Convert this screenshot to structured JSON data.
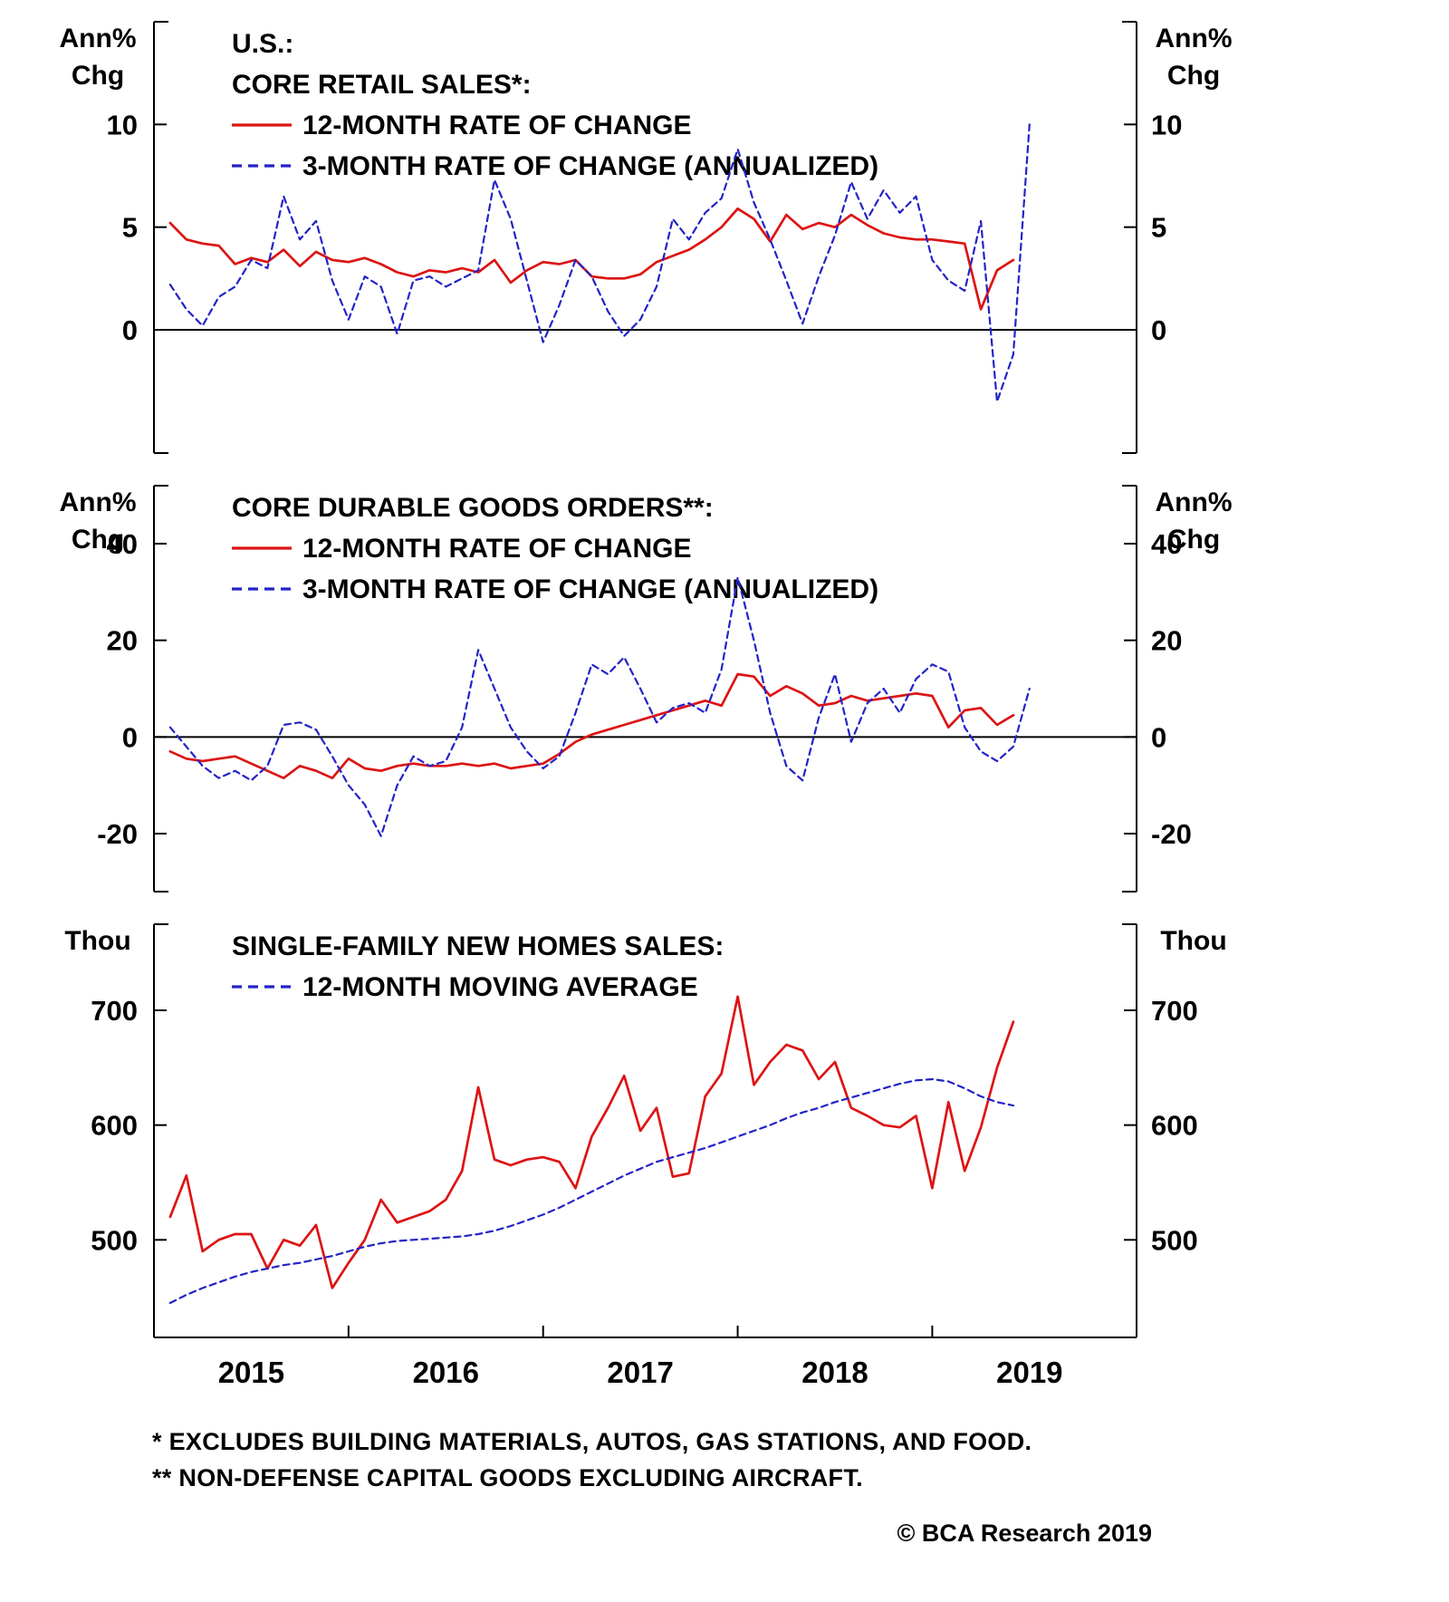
{
  "page": {
    "footnotes": [
      "*  EXCLUDES BUILDING MATERIALS, AUTOS, GAS STATIONS, AND FOOD.",
      "** NON-DEFENSE CAPITAL GOODS EXCLUDING AIRCRAFT."
    ],
    "copyright": "© BCA Research 2019"
  },
  "colors": {
    "red": "#dd1414",
    "blue": "#2323c8",
    "axis": "#000000"
  },
  "x_axis": {
    "xlim": [
      2014.5,
      2019.55
    ],
    "minor_ticks": [
      2015.5,
      2016.5,
      2017.5,
      2018.5
    ],
    "year_labels": [
      {
        "label": "2015",
        "x": 2015
      },
      {
        "label": "2016",
        "x": 2016
      },
      {
        "label": "2017",
        "x": 2017
      },
      {
        "label": "2018",
        "x": 2018
      },
      {
        "label": "2019",
        "x": 2019
      }
    ]
  },
  "chart_data": [
    {
      "type": "line",
      "unit_lines": [
        "Ann%",
        "Chg"
      ],
      "title_lines": [
        "U.S.:",
        "CORE RETAIL SALES*:"
      ],
      "legend": [
        {
          "label": "12-MONTH RATE OF CHANGE",
          "color": "red",
          "style": "solid"
        },
        {
          "label": "3-MONTH RATE OF CHANGE (ANNUALIZED)",
          "color": "blue",
          "style": "dashed"
        }
      ],
      "ylim": [
        -6,
        15
      ],
      "yticks": [
        0,
        5,
        10
      ],
      "zero_line": true,
      "show_x_axis": false,
      "series": [
        {
          "name": "12-month rate of change",
          "color": "red",
          "style": "solid",
          "start_year": 2014,
          "start_month": 8,
          "values": [
            5.2,
            4.4,
            4.2,
            4.1,
            3.2,
            3.5,
            3.3,
            3.9,
            3.1,
            3.8,
            3.4,
            3.3,
            3.5,
            3.2,
            2.8,
            2.6,
            2.9,
            2.8,
            3.0,
            2.8,
            3.4,
            2.3,
            2.9,
            3.3,
            3.2,
            3.4,
            2.6,
            2.5,
            2.5,
            2.7,
            3.3,
            3.6,
            3.9,
            4.4,
            5.0,
            5.9,
            5.4,
            4.3,
            5.6,
            4.9,
            5.2,
            5.0,
            5.6,
            5.1,
            4.7,
            4.5,
            4.4,
            4.4,
            4.3,
            4.2,
            1.0,
            2.9,
            3.4
          ]
        },
        {
          "name": "3-month rate of change (annualized)",
          "color": "blue",
          "style": "dashed",
          "start_year": 2014,
          "start_month": 8,
          "values": [
            2.2,
            1.0,
            0.2,
            1.6,
            2.1,
            3.4,
            3.0,
            6.5,
            4.4,
            5.3,
            2.4,
            0.5,
            2.6,
            2.1,
            -0.2,
            2.4,
            2.6,
            2.1,
            2.5,
            2.9,
            7.3,
            5.4,
            2.4,
            -0.6,
            1.2,
            3.4,
            2.6,
            0.9,
            -0.3,
            0.5,
            2.1,
            5.4,
            4.4,
            5.7,
            6.4,
            8.8,
            6.2,
            4.4,
            2.4,
            0.3,
            2.6,
            4.6,
            7.2,
            5.4,
            6.8,
            5.7,
            6.5,
            3.4,
            2.4,
            1.9,
            5.3,
            -3.5,
            -1.2,
            10.0
          ]
        }
      ]
    },
    {
      "type": "line",
      "unit_lines": [
        "Ann%",
        "Chg"
      ],
      "title_lines": [
        "CORE DURABLE GOODS ORDERS**:"
      ],
      "legend": [
        {
          "label": "12-MONTH RATE OF CHANGE",
          "color": "red",
          "style": "solid"
        },
        {
          "label": "3-MONTH RATE OF CHANGE (ANNUALIZED)",
          "color": "blue",
          "style": "dashed"
        }
      ],
      "ylim": [
        -32,
        52
      ],
      "yticks": [
        -20,
        0,
        20,
        40
      ],
      "zero_line": true,
      "show_x_axis": false,
      "series": [
        {
          "name": "12-month rate of change",
          "color": "red",
          "style": "solid",
          "start_year": 2014,
          "start_month": 8,
          "values": [
            -3,
            -4.5,
            -5,
            -4.5,
            -4,
            -5.5,
            -7,
            -8.5,
            -6,
            -7,
            -8.5,
            -4.5,
            -6.5,
            -7,
            -6,
            -5.5,
            -6,
            -6,
            -5.5,
            -6,
            -5.5,
            -6.5,
            -6,
            -5.5,
            -3.5,
            -1,
            0.5,
            1.5,
            2.5,
            3.5,
            4.5,
            5.5,
            6.5,
            7.5,
            6.5,
            13,
            12.5,
            8.5,
            10.5,
            9,
            6.5,
            7,
            8.5,
            7.5,
            8,
            8.5,
            9,
            8.5,
            2,
            5.5,
            6,
            2.5,
            4.5
          ]
        },
        {
          "name": "3-month rate of change (annualized)",
          "color": "blue",
          "style": "dashed",
          "start_year": 2014,
          "start_month": 8,
          "values": [
            2,
            -2,
            -6,
            -8.5,
            -7,
            -9,
            -6,
            2.5,
            3,
            1.5,
            -4,
            -10,
            -14,
            -20.5,
            -10,
            -4,
            -6,
            -5,
            2,
            18,
            10,
            2,
            -3,
            -6.5,
            -4,
            5,
            15,
            13,
            16.5,
            10,
            3,
            6,
            7,
            5,
            14,
            33,
            20,
            5,
            -6,
            -9,
            4,
            13,
            -1,
            7,
            10,
            5,
            12,
            15,
            13.5,
            2,
            -3,
            -5,
            -2,
            10
          ]
        }
      ]
    },
    {
      "type": "line",
      "unit_lines": [
        "Thou"
      ],
      "title_lines": [
        "SINGLE-FAMILY NEW HOMES SALES:"
      ],
      "legend": [
        {
          "label": "12-MONTH MOVING AVERAGE",
          "color": "blue",
          "style": "dashed"
        }
      ],
      "ylim": [
        415,
        775
      ],
      "yticks": [
        500,
        600,
        700
      ],
      "zero_line": false,
      "show_x_axis": true,
      "series": [
        {
          "name": "single-family new homes sales",
          "color": "red",
          "style": "solid",
          "start_year": 2014,
          "start_month": 8,
          "values": [
            520,
            556,
            490,
            500,
            505,
            505,
            475,
            500,
            495,
            513,
            458,
            480,
            500,
            535,
            515,
            520,
            525,
            535,
            560,
            633,
            570,
            565,
            570,
            572,
            568,
            545,
            590,
            615,
            643,
            595,
            615,
            555,
            558,
            625,
            645,
            712,
            635,
            655,
            670,
            665,
            640,
            655,
            615,
            608,
            600,
            598,
            608,
            545,
            620,
            560,
            598,
            650,
            690
          ]
        },
        {
          "name": "12-month moving average",
          "color": "blue",
          "style": "dashed",
          "start_year": 2014,
          "start_month": 8,
          "values": [
            445,
            452,
            458,
            463,
            468,
            472,
            475,
            478,
            480,
            483,
            486,
            490,
            494,
            497,
            499,
            500,
            501,
            502,
            503,
            505,
            508,
            512,
            517,
            522,
            528,
            535,
            542,
            549,
            556,
            562,
            568,
            572,
            576,
            580,
            585,
            590,
            595,
            600,
            606,
            611,
            615,
            620,
            624,
            628,
            632,
            636,
            639,
            640,
            638,
            632,
            625,
            620,
            617
          ]
        }
      ]
    }
  ]
}
